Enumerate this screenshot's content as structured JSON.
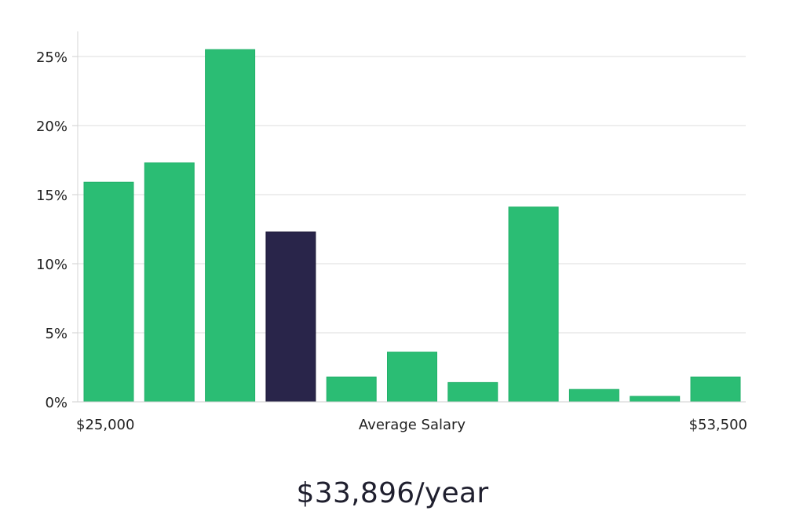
{
  "chart_data": {
    "type": "bar",
    "title": "",
    "xlabel": "Average Salary",
    "ylabel": "",
    "x_range_labels": {
      "min": "$25,000",
      "max": "$53,500"
    },
    "ylim": [
      0,
      26.8
    ],
    "yticks": [
      0,
      5,
      10,
      15,
      20,
      25
    ],
    "ytick_labels": [
      "0%",
      "5%",
      "10%",
      "15%",
      "20%",
      "25%"
    ],
    "grid": true,
    "values": [
      15.9,
      17.3,
      25.5,
      12.3,
      1.8,
      3.6,
      1.4,
      14.1,
      0.9,
      0.4,
      1.8
    ],
    "highlight_index": 3,
    "bar_color": "#2bbd74",
    "highlight_color": "#29254a"
  },
  "summary": {
    "salary_text": "$33,896/year"
  }
}
